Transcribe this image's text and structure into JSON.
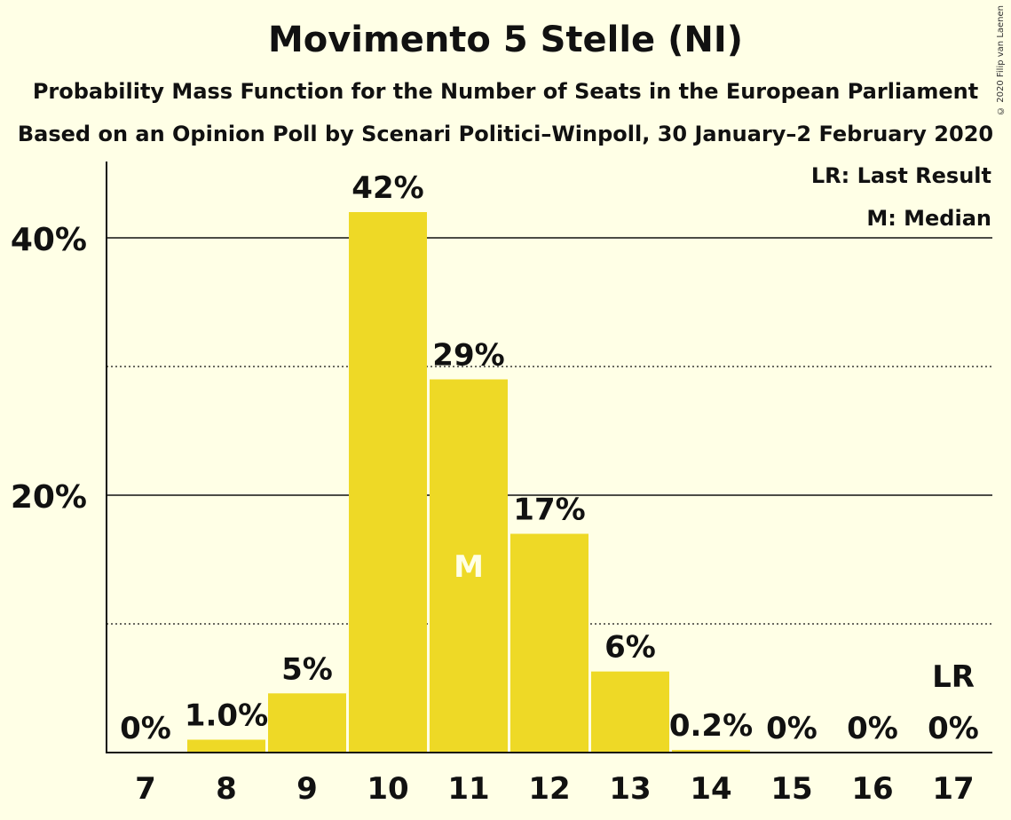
{
  "title": "Movimento 5 Stelle (NI)",
  "subtitle1": "Probability Mass Function for the Number of Seats in the European Parliament",
  "subtitle2": "Based on an Opinion Poll by Scenari Politici–Winpoll, 30 January–2 February 2020",
  "copyright": "© 2020 Filip van Laenen",
  "legend": {
    "last_result": "LR: Last Result",
    "median": "M: Median"
  },
  "colors": {
    "bar": "#eed926",
    "background": "#ffffe6",
    "median_label": "#ffffe6"
  },
  "chart_data": {
    "type": "bar",
    "xlabel": "",
    "ylabel": "",
    "categories": [
      "7",
      "8",
      "9",
      "10",
      "11",
      "12",
      "13",
      "14",
      "15",
      "16",
      "17"
    ],
    "values": [
      0,
      1.0,
      4.6,
      42,
      29,
      17,
      6.3,
      0.2,
      0,
      0,
      0
    ],
    "data_labels": [
      "0%",
      "1.0%",
      "5%",
      "42%",
      "29%",
      "17%",
      "6%",
      "0.2%",
      "0%",
      "0%",
      "0%"
    ],
    "ylim": [
      0,
      46
    ],
    "y_ticks_major": [
      20,
      40
    ],
    "y_ticks_major_labels": [
      "20%",
      "40%"
    ],
    "y_ticks_minor": [
      10,
      30
    ],
    "median_category": "11",
    "median_marker": "M",
    "last_result_category": "17",
    "last_result_marker": "LR"
  }
}
